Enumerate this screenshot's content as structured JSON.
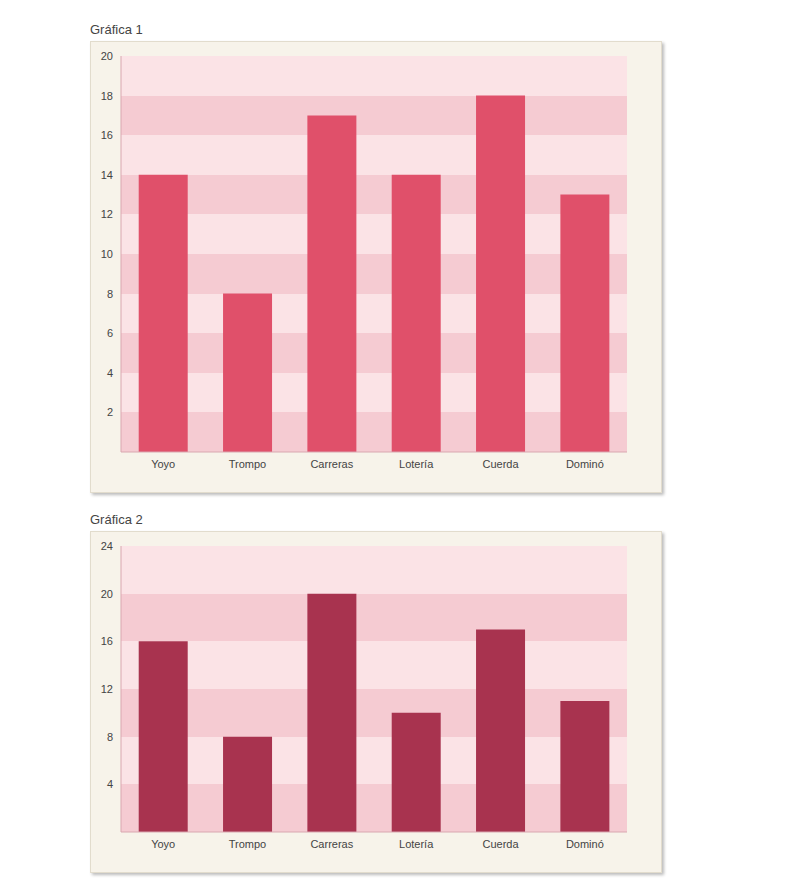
{
  "chart_data": [
    {
      "type": "bar",
      "title": "Gráfica 1",
      "categories": [
        "Yoyo",
        "Trompo",
        "Carreras",
        "Lotería",
        "Cuerda",
        "Dominó"
      ],
      "values": [
        14,
        8,
        17,
        14,
        18,
        13
      ],
      "color": "#e0506a",
      "ylim": [
        0,
        20
      ],
      "yticks": [
        2,
        4,
        6,
        8,
        10,
        12,
        14,
        16,
        18,
        20
      ],
      "grid": true
    },
    {
      "type": "bar",
      "title": "Gráfica 2",
      "categories": [
        "Yoyo",
        "Trompo",
        "Carreras",
        "Lotería",
        "Cuerda",
        "Dominó"
      ],
      "values": [
        16,
        8,
        20,
        10,
        17,
        11
      ],
      "color": "#a8334f",
      "ylim": [
        0,
        24
      ],
      "yticks": [
        4,
        8,
        12,
        16,
        20,
        24
      ],
      "grid": true
    }
  ]
}
